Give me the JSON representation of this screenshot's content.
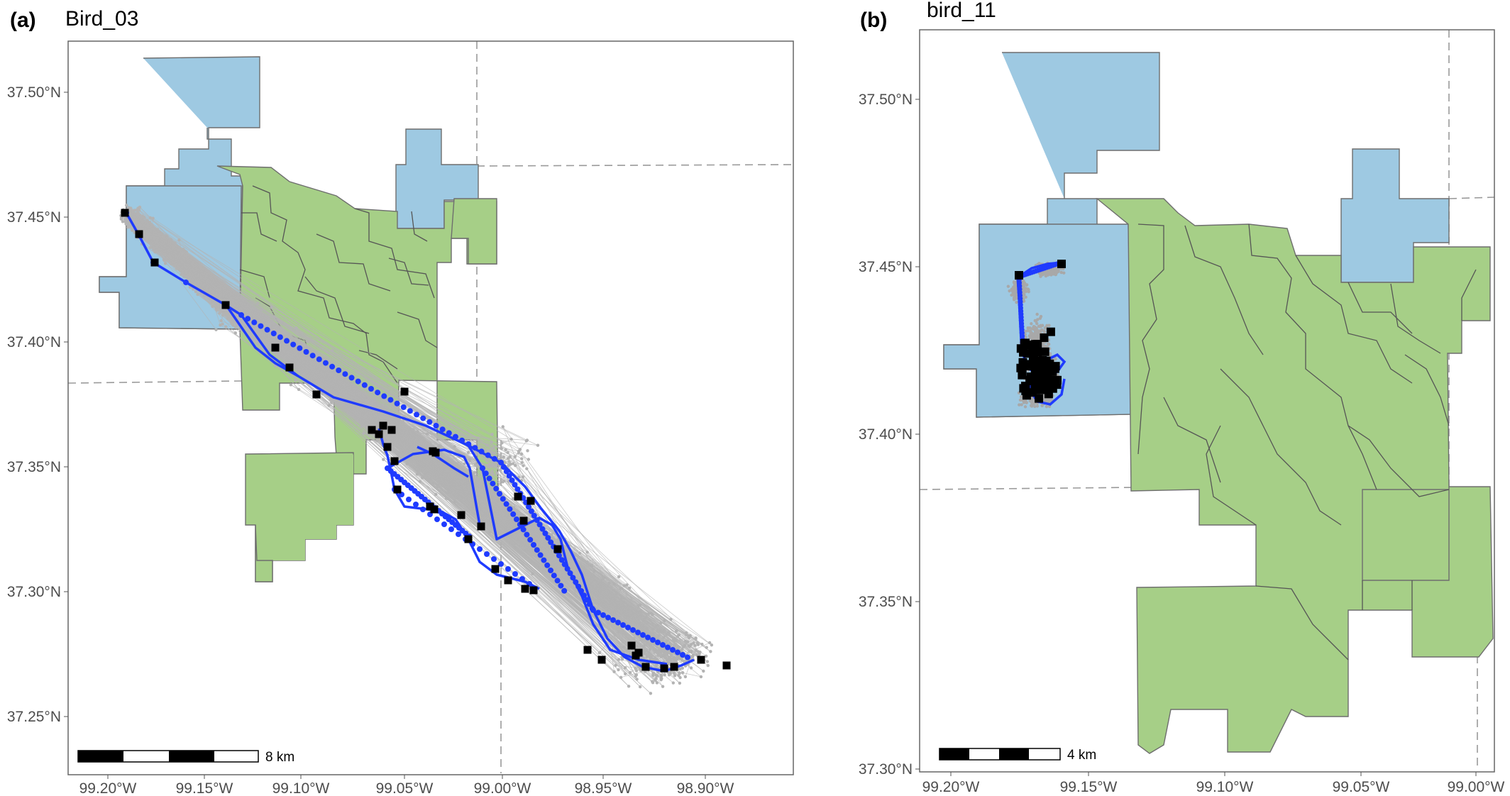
{
  "colors": {
    "public_land": "#a6cf87",
    "water_area": "#9ec9e2",
    "raw_fix": "#b3b3b3",
    "track": "#1f3bff",
    "stop": "#000000",
    "boundary": "#7a7a7a"
  },
  "panels": [
    {
      "letter": "(a)",
      "name": "Bird_03",
      "x_ticks": [
        "99.20°W",
        "99.15°W",
        "99.10°W",
        "99.05°W",
        "99.00°W",
        "98.95°W",
        "98.90°W"
      ],
      "y_ticks": [
        "37.50°N",
        "37.45°N",
        "37.40°N",
        "37.35°N",
        "37.30°N",
        "37.25°N"
      ],
      "scale_bar": "8 km"
    },
    {
      "letter": "(b)",
      "name": "bird_11",
      "x_ticks": [
        "99.20°W",
        "99.15°W",
        "99.10°W",
        "99.05°W",
        "99.00°W"
      ],
      "y_ticks": [
        "37.50°N",
        "37.45°N",
        "37.40°N",
        "37.35°N",
        "37.30°N"
      ],
      "scale_bar": "4 km"
    }
  ]
}
